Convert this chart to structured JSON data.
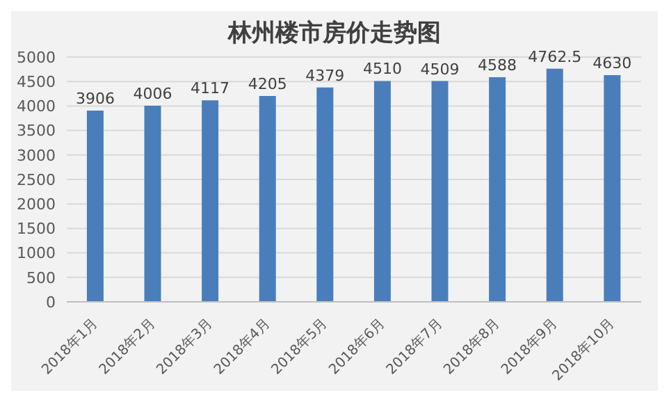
{
  "chart_data": {
    "type": "bar",
    "title": "林州楼市房价走势图",
    "categories": [
      "2018年1月",
      "2018年2月",
      "2018年3月",
      "2018年4月",
      "2018年5月",
      "2018年6月",
      "2018年7月",
      "2018年8月",
      "2018年9月",
      "2018年10月"
    ],
    "values": [
      3906,
      4006,
      4117,
      4205,
      4379,
      4510,
      4509,
      4588,
      4762.5,
      4630
    ],
    "color": "#4a7ebb",
    "ylim": [
      0,
      5000
    ],
    "yticks": [
      0,
      500,
      1000,
      1500,
      2000,
      2500,
      3000,
      3500,
      4000,
      4500,
      5000
    ],
    "grid": "y",
    "data_labels": true
  }
}
